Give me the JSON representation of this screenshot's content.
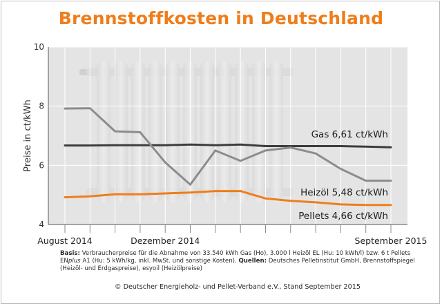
{
  "chart_data": {
    "type": "line",
    "title": "Brennstoffkosten in Deutschland",
    "ylabel": "Preise in ct/kWh",
    "xlabel": "",
    "ylim": [
      4,
      10
    ],
    "yticks": [
      4,
      6,
      8,
      10
    ],
    "x_tick_labels": [
      "August 2014",
      "Dezember 2014",
      "September 2015"
    ],
    "x_periods": 14,
    "grid": true,
    "series": [
      {
        "name": "Gas",
        "label": "Gas 6,61 ct/kWh",
        "color": "#3c3c3c",
        "values": [
          6.67,
          6.67,
          6.68,
          6.68,
          6.68,
          6.7,
          6.68,
          6.7,
          6.65,
          6.65,
          6.65,
          6.65,
          6.63,
          6.61
        ]
      },
      {
        "name": "Heizöl",
        "label": "Heizöl 5,48 ct/kWh",
        "color": "#8c8c8c",
        "values": [
          7.92,
          7.93,
          7.15,
          7.12,
          6.1,
          5.35,
          6.5,
          6.15,
          6.5,
          6.6,
          6.4,
          5.88,
          5.48,
          5.48
        ]
      },
      {
        "name": "Pellets",
        "label": "Pellets 4,66 ct/kWh",
        "color": "#ef7d1a",
        "values": [
          4.92,
          4.95,
          5.02,
          5.02,
          5.05,
          5.08,
          5.13,
          5.13,
          4.88,
          4.8,
          4.75,
          4.68,
          4.66,
          4.66
        ]
      }
    ]
  },
  "footnote": {
    "basis_label": "Basis:",
    "basis_text": " Verbraucherpreise für die Abnahme von 33.540 kWh Gas (Ho), 3.000 l Heizöl EL (Hu: 10 kWh/l) bzw. 6 t Pellets EN",
    "plus_text": "plus",
    "basis_text_2": " A1 (Hu: 5 kWh/kg, inkl. MwSt. und sonstige Kosten). ",
    "sources_label": "Quellen:",
    "sources_text": " Deutsches Pelletinstitut GmbH, Brennstoffspiegel (Heizöl- und Erdgaspreise), esyoil (Heizölpreise)"
  },
  "copyright": "© Deutscher Energieholz- und Pellet-Verband e.V., Stand September 2015",
  "colors": {
    "title": "#ef7d1a",
    "plot_bg": "#e4e4e4",
    "grid": "#ffffff"
  }
}
